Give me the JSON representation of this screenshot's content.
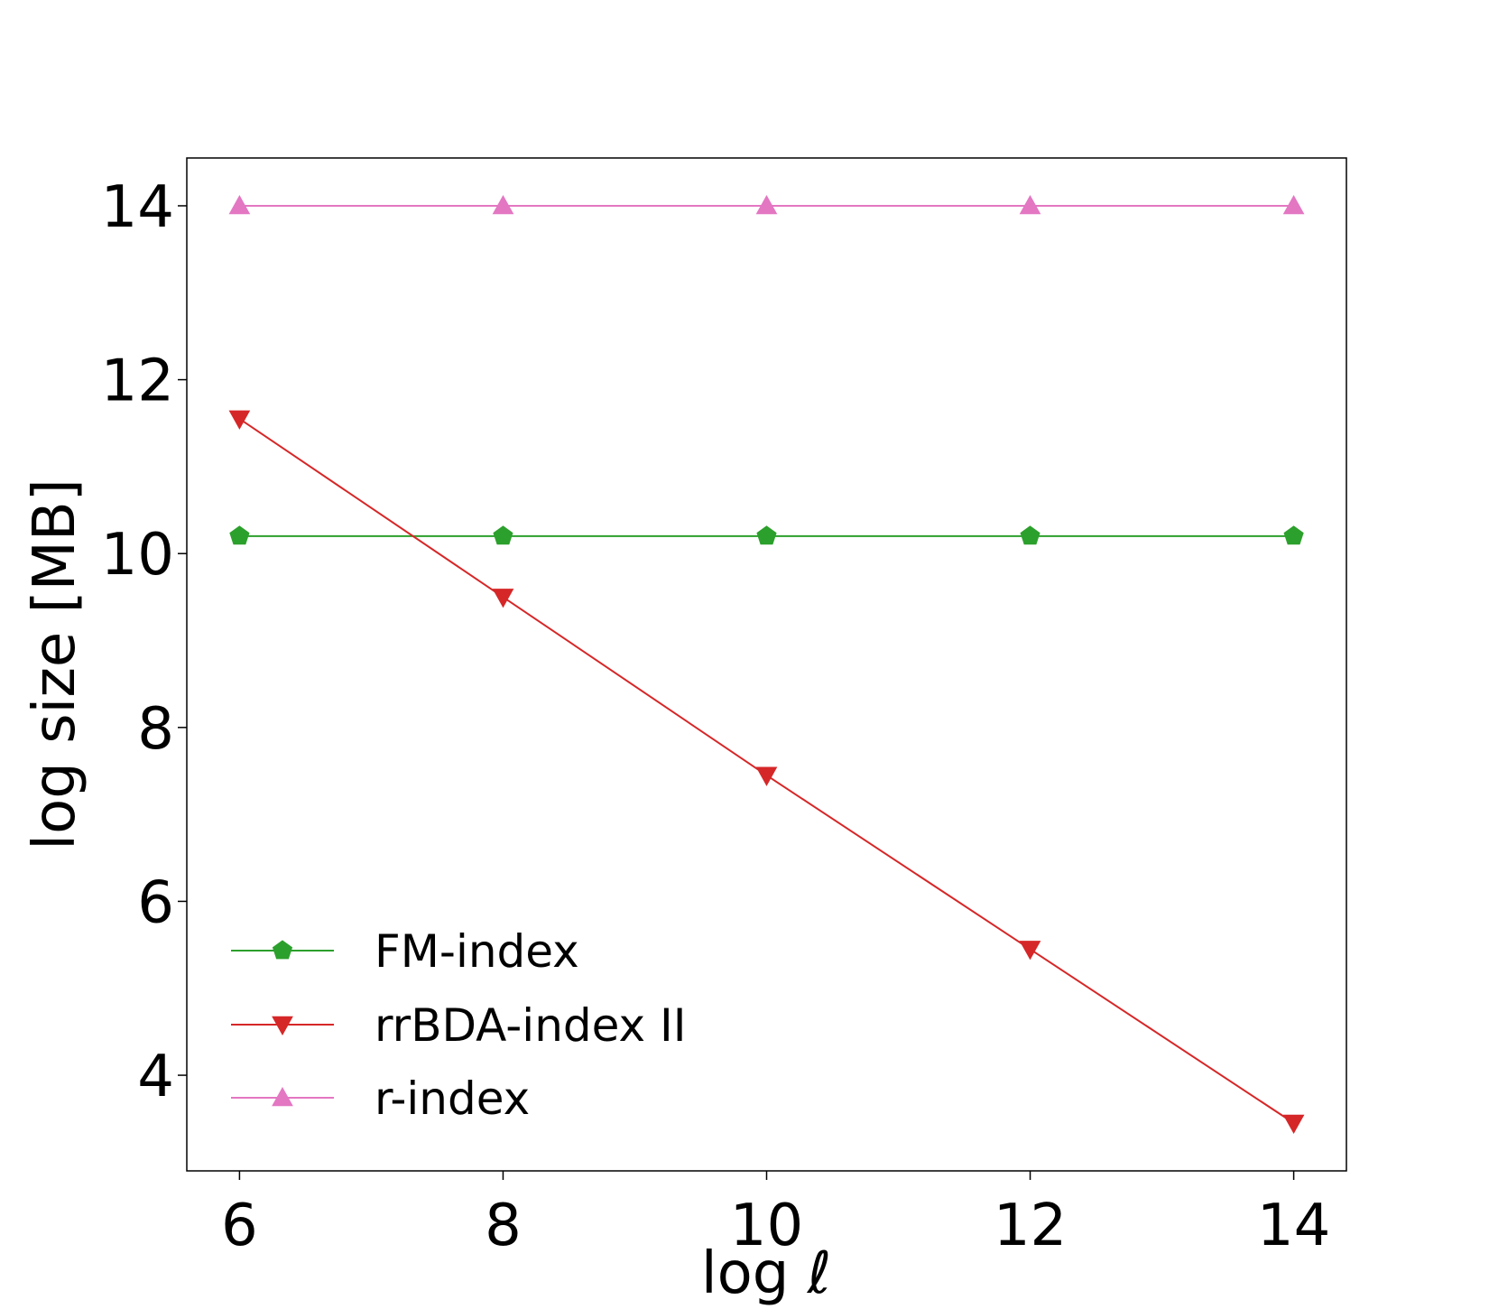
{
  "chart_data": {
    "type": "line",
    "title": "",
    "xlabel": "log ℓ",
    "ylabel": "log size [MB]",
    "x": [
      6,
      8,
      10,
      12,
      14
    ],
    "xlim": [
      5.6,
      14.4
    ],
    "ylim": [
      2.9,
      14.55
    ],
    "xticks": [
      6,
      8,
      10,
      12,
      14
    ],
    "yticks": [
      4,
      6,
      8,
      10,
      12,
      14
    ],
    "grid": false,
    "legend_position": "lower-left",
    "series": [
      {
        "name": "FM-index",
        "color": "#2ca02c",
        "marker": "pentagon",
        "values": [
          10.2,
          10.2,
          10.2,
          10.2,
          10.2
        ]
      },
      {
        "name": "rrBDA-index II",
        "color": "#d62728",
        "marker": "triangle-down",
        "values": [
          11.55,
          9.5,
          7.45,
          5.45,
          3.45
        ]
      },
      {
        "name": "r-index",
        "color": "#e377c2",
        "marker": "triangle-up",
        "values": [
          14.0,
          14.0,
          14.0,
          14.0,
          14.0
        ]
      }
    ]
  }
}
